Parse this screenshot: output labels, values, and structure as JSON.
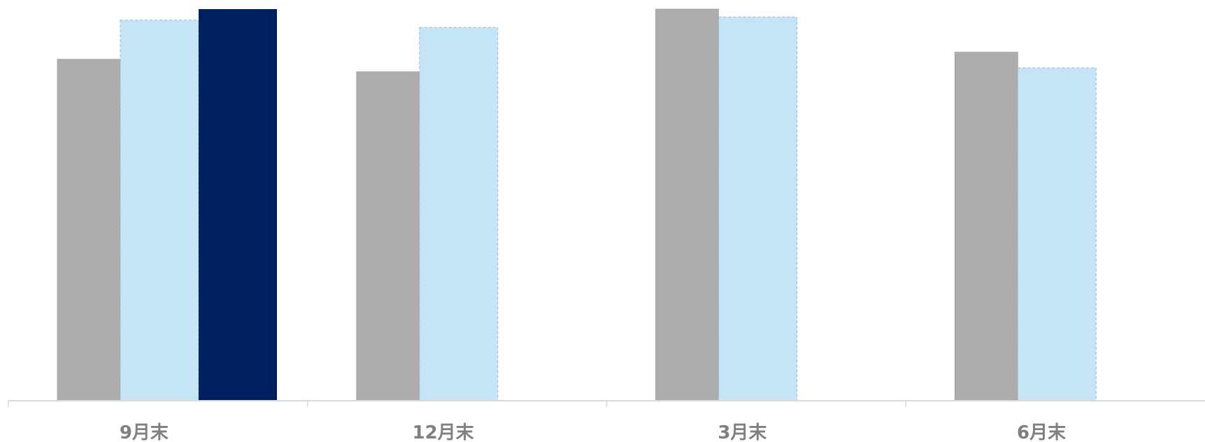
{
  "chart_data": {
    "type": "bar",
    "title": "",
    "xlabel": "",
    "ylabel": "",
    "categories": [
      "9月末",
      "12月末",
      "3月末",
      "6月末"
    ],
    "ylim": [
      0,
      100
    ],
    "grid": false,
    "legend": "none",
    "series": [
      {
        "color": "#ADADAD",
        "values": [
          87.2,
          84.0,
          100.0,
          89.0
        ]
      },
      {
        "color": "#C5E5F6",
        "values": [
          97.2,
          95.3,
          98.0,
          85.0
        ]
      },
      {
        "color": "#001F5F",
        "values": [
          100.0,
          null,
          null,
          null
        ]
      }
    ],
    "colors": {
      "axis": "#D9D9D9",
      "label": "#808080",
      "dashed_border": "#9FB8CF"
    }
  }
}
